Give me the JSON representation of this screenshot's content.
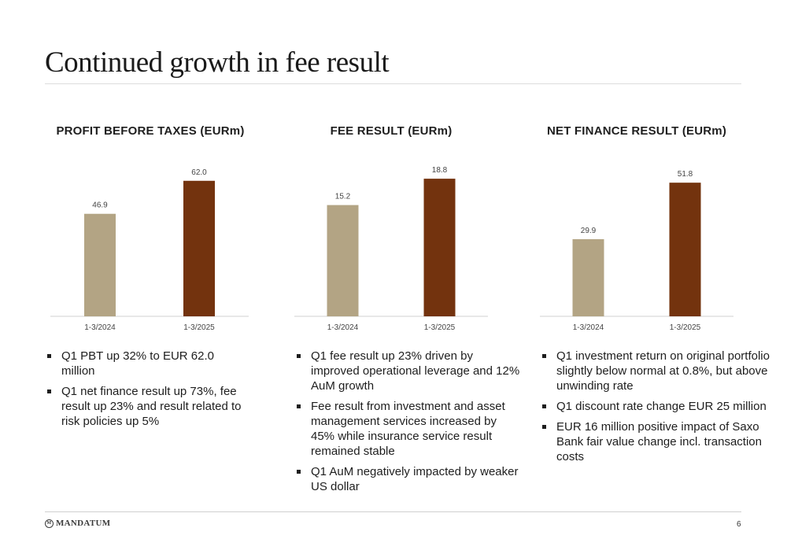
{
  "title": "Continued growth in fee result",
  "colors": {
    "prior": "#b3a484",
    "current": "#73330e",
    "axis": "#d0d0d0"
  },
  "chart_data": [
    {
      "type": "bar",
      "title": "PROFIT BEFORE TAXES (EURm)",
      "categories": [
        "1-3/2024",
        "1-3/2025"
      ],
      "values": [
        46.9,
        62.0
      ],
      "labels": [
        "46.9",
        "62.0"
      ],
      "ylim": [
        0,
        72
      ]
    },
    {
      "type": "bar",
      "title": "FEE RESULT (EURm)",
      "categories": [
        "1-3/2024",
        "1-3/2025"
      ],
      "values": [
        15.2,
        18.8
      ],
      "labels": [
        "15.2",
        "18.8"
      ],
      "ylim": [
        0,
        21.5
      ]
    },
    {
      "type": "bar",
      "title": "NET FINANCE RESULT (EURm)",
      "categories": [
        "1-3/2024",
        "1-3/2025"
      ],
      "values": [
        29.9,
        51.8
      ],
      "labels": [
        "29.9",
        "51.8"
      ],
      "ylim": [
        0,
        61
      ]
    }
  ],
  "bullets": [
    [
      "Q1 PBT up 32% to EUR 62.0 million",
      "Q1 net finance result up 73%, fee result up 23% and result related to risk policies up 5%"
    ],
    [
      "Q1 fee result up 23% driven by improved operational leverage and 12% AuM growth",
      "Fee result from investment and asset management services increased by 45% while insurance service result remained stable",
      "Q1 AuM negatively impacted by weaker US dollar"
    ],
    [
      "Q1 investment return on original portfolio slightly below normal at 0.8%, but above unwinding rate",
      "Q1 discount rate change EUR 25 million",
      "EUR 16 million positive impact of Saxo Bank fair value change incl. transaction costs"
    ]
  ],
  "footer": {
    "logo": "MANDATUM",
    "page": "6"
  }
}
